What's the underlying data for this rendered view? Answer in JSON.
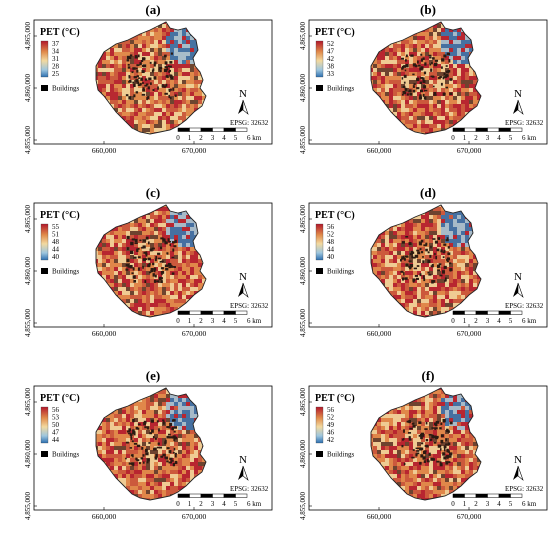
{
  "panels": [
    {
      "label": "(a)",
      "legend": {
        "title": "PET (°C)",
        "ticks": [
          "37",
          "34",
          "31",
          "28",
          "25"
        ]
      }
    },
    {
      "label": "(b)",
      "legend": {
        "title": "PET (°C)",
        "ticks": [
          "52",
          "47",
          "42",
          "38",
          "33"
        ]
      }
    },
    {
      "label": "(c)",
      "legend": {
        "title": "PET (°C)",
        "ticks": [
          "55",
          "51",
          "48",
          "44",
          "40"
        ]
      }
    },
    {
      "label": "(d)",
      "legend": {
        "title": "PET (°C)",
        "ticks": [
          "56",
          "52",
          "48",
          "44",
          "40"
        ]
      }
    },
    {
      "label": "(e)",
      "legend": {
        "title": "PET (°C)",
        "ticks": [
          "56",
          "53",
          "50",
          "47",
          "44"
        ]
      }
    },
    {
      "label": "(f)",
      "legend": {
        "title": "PET (°C)",
        "ticks": [
          "56",
          "52",
          "49",
          "46",
          "42"
        ]
      }
    }
  ],
  "common": {
    "buildings_label": "Buildings",
    "north": "N",
    "epsg": "EPSG: 32632",
    "scale_ticks": [
      "0",
      "1",
      "2",
      "3",
      "4",
      "5",
      "6 km"
    ],
    "y_ticks": [
      "4,865,000",
      "4,860,000",
      "4,855,000"
    ],
    "x_ticks": [
      "660,000",
      "670,000"
    ]
  },
  "colors": {
    "hot": "#b2182b",
    "warm": "#e08a4a",
    "mild": "#f2d9a0",
    "cool": "#9ec6de",
    "cold": "#2c6fb0"
  }
}
